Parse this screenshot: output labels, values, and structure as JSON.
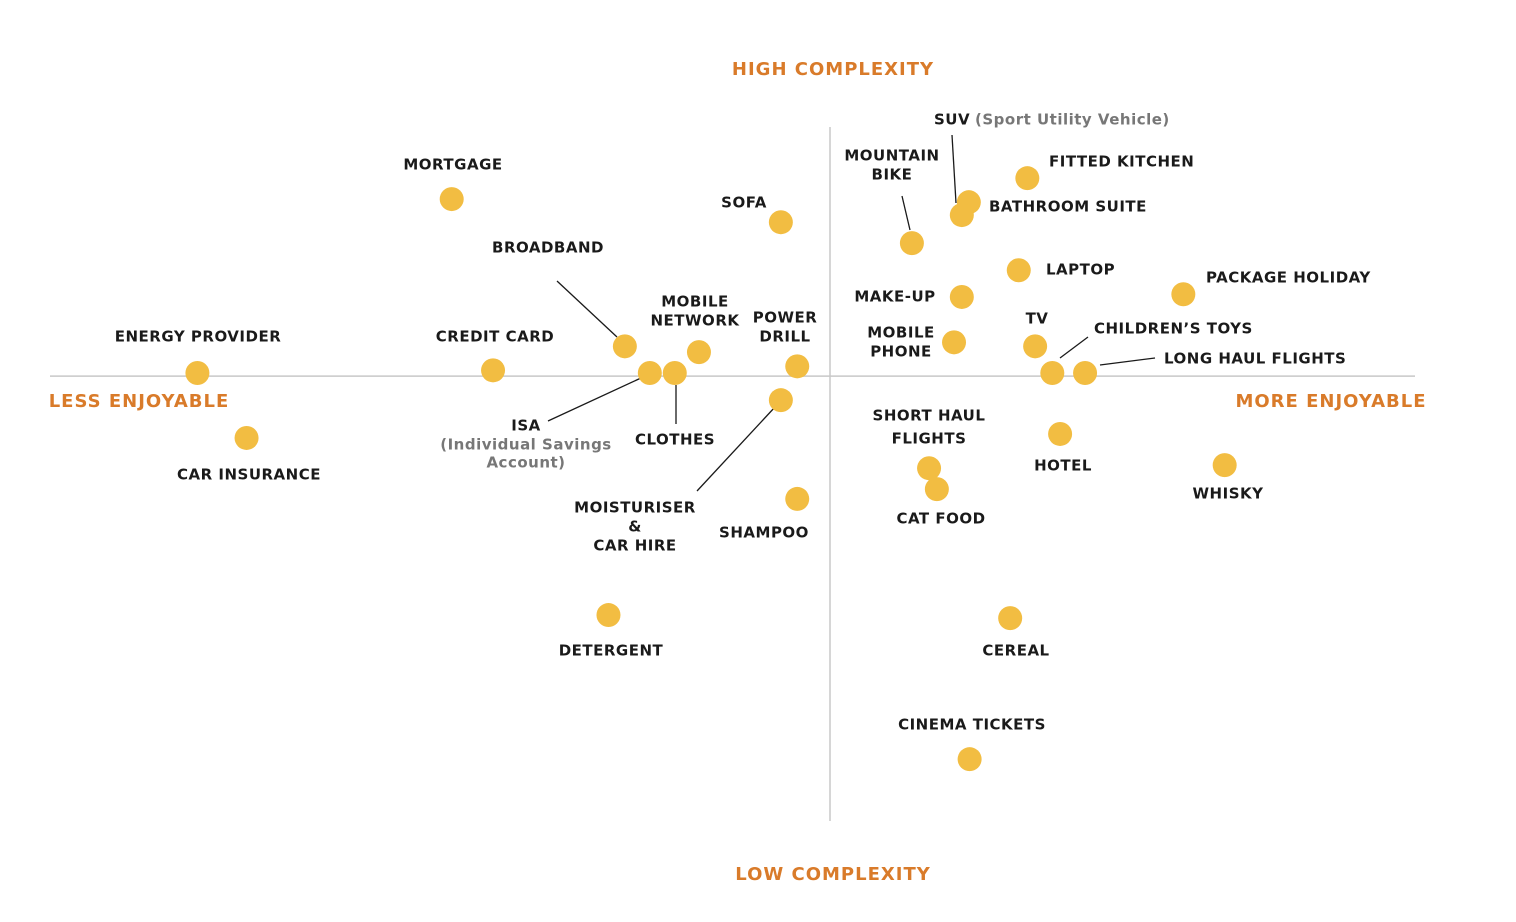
{
  "chart_data": {
    "type": "scatter",
    "x_axis_labels": [
      "LESS ENJOYABLE",
      "MORE ENJOYABLE"
    ],
    "y_axis_labels": [
      "LOW COMPLEXITY",
      "HIGH COMPLEXITY"
    ],
    "xlim": [
      -100,
      75
    ],
    "ylim": [
      -100,
      56
    ],
    "color": "#f2bd42",
    "labels": [
      [
        "ENERGY PROVIDER"
      ],
      [
        "CAR INSURANCE"
      ],
      [
        "MORTGAGE"
      ],
      [
        "CREDIT CARD"
      ],
      [
        "BROADBAND"
      ],
      [
        "ISA",
        "(Individual Savings",
        "Account)"
      ],
      [
        "CLOTHES"
      ],
      [
        "MOBILE",
        "NETWORK"
      ],
      [
        "SOFA"
      ],
      [
        "POWER",
        "DRILL"
      ],
      [
        "MOISTURISER",
        "&",
        "CAR HIRE"
      ],
      [
        "SHAMPOO"
      ],
      [
        "DETERGENT"
      ],
      [
        "MOUNTAIN",
        "BIKE"
      ],
      [
        "SUV",
        "(Sport Utility Vehicle)"
      ],
      [
        "BATHROOM SUITE"
      ],
      [
        "FITTED KITCHEN"
      ],
      [
        "LAPTOP"
      ],
      [
        "MAKE-UP"
      ],
      [
        "MOBILE",
        "PHONE"
      ],
      [
        "TV"
      ],
      [
        "CHILDREN’S TOYS"
      ],
      [
        "LONG HAUL FLIGHTS"
      ],
      [
        "PACKAGE HOLIDAY"
      ],
      [
        "HOTEL"
      ],
      [
        "WHISKY"
      ],
      [
        "SHORT HAUL",
        "FLIGHTS"
      ],
      [
        "CAT FOOD"
      ],
      [
        "CEREAL"
      ],
      [
        "CINEMA TICKETS"
      ]
    ],
    "x": [
      -81.1,
      -74.8,
      -48.5,
      -43.2,
      -26.3,
      -23.1,
      -19.9,
      -16.8,
      -6.3,
      -4.2,
      -6.3,
      -4.2,
      -28.4,
      10.5,
      17.8,
      16.9,
      25.3,
      24.2,
      16.9,
      15.9,
      26.3,
      28.5,
      32.7,
      45.3,
      29.5,
      50.6,
      12.7,
      13.7,
      23.1,
      17.9
    ],
    "values": [
      0.7,
      -13.9,
      39.8,
      1.3,
      6.7,
      0.7,
      0.7,
      5.4,
      34.6,
      2.2,
      -5.4,
      -27.6,
      -53.7,
      29.9,
      39.1,
      36.2,
      44.5,
      23.8,
      17.8,
      7.6,
      6.7,
      0.7,
      0.7,
      18.4,
      -13.0,
      -20.0,
      -20.7,
      -25.4,
      -54.4,
      -86.1
    ]
  }
}
